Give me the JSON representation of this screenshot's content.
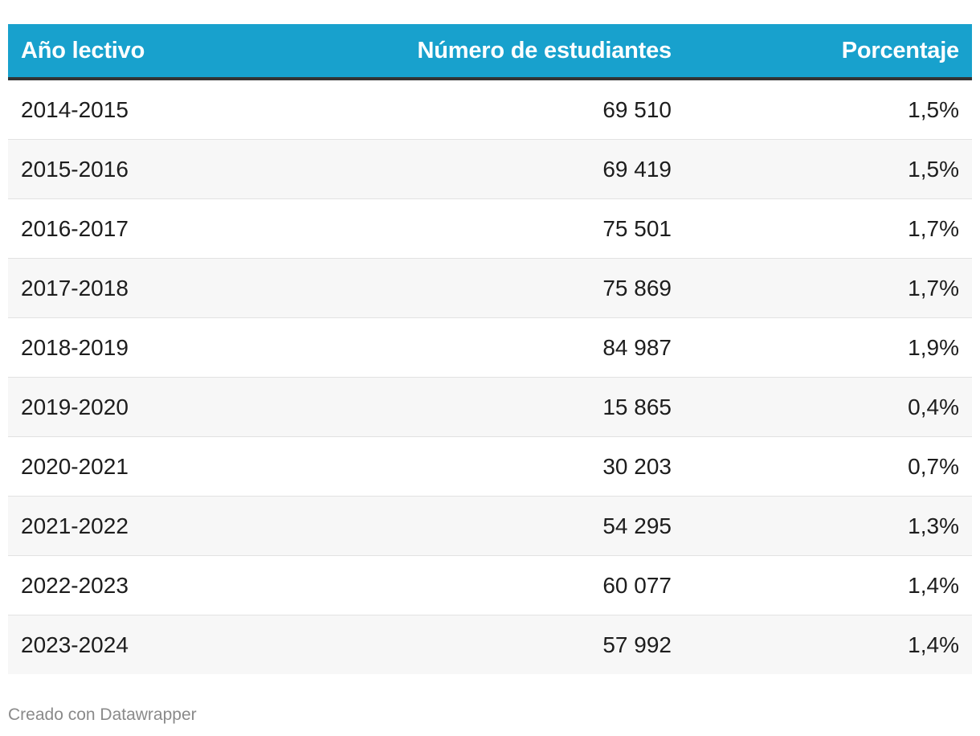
{
  "chart_data": {
    "type": "table",
    "columns": [
      "Año lectivo",
      "Número de estudiantes",
      "Porcentaje"
    ],
    "rows": [
      {
        "year": "2014-2015",
        "students": "69 510",
        "percent": "1,5%"
      },
      {
        "year": "2015-2016",
        "students": "69 419",
        "percent": "1,5%"
      },
      {
        "year": "2016-2017",
        "students": "75 501",
        "percent": "1,7%"
      },
      {
        "year": "2017-2018",
        "students": "75 869",
        "percent": "1,7%"
      },
      {
        "year": "2018-2019",
        "students": "84 987",
        "percent": "1,9%"
      },
      {
        "year": "2019-2020",
        "students": "15 865",
        "percent": "0,4%"
      },
      {
        "year": "2020-2021",
        "students": "30 203",
        "percent": "0,7%"
      },
      {
        "year": "2021-2022",
        "students": "54 295",
        "percent": "1,3%"
      },
      {
        "year": "2022-2023",
        "students": "60 077",
        "percent": "1,4%"
      },
      {
        "year": "2023-2024",
        "students": "57 992",
        "percent": "1,4%"
      }
    ]
  },
  "footer": {
    "credit": "Creado con Datawrapper"
  },
  "colors": {
    "header_bg": "#18a1cd",
    "header_border": "#333333",
    "stripe": "#f7f7f7"
  }
}
